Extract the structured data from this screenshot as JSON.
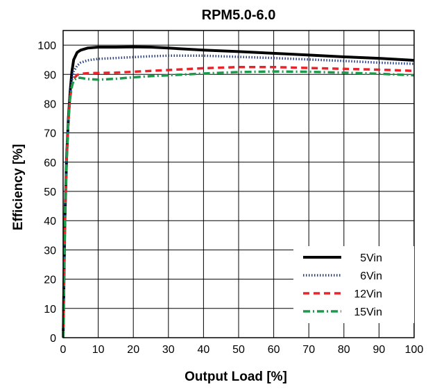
{
  "chart_data": {
    "type": "line",
    "title": "RPM5.0-6.0",
    "xlabel": "Output Load [%]",
    "ylabel": "Efficiency [%]",
    "xlim": [
      0,
      100
    ],
    "ylim": [
      0,
      105
    ],
    "x_ticks": [
      0,
      10,
      20,
      30,
      40,
      50,
      60,
      70,
      80,
      90,
      100
    ],
    "y_ticks": [
      0,
      10,
      20,
      30,
      40,
      50,
      60,
      70,
      80,
      90,
      100
    ],
    "grid": true,
    "legend_position": "lower-right",
    "series": [
      {
        "name": "5Vin",
        "color": "#000000",
        "style": "solid",
        "x": [
          0,
          0.5,
          1,
          1.5,
          2,
          2.5,
          3,
          4,
          5,
          7,
          10,
          15,
          20,
          25,
          30,
          40,
          50,
          60,
          70,
          80,
          90,
          100
        ],
        "y": [
          0,
          40,
          62,
          75,
          84,
          91,
          95,
          97.5,
          98.3,
          99,
          99.3,
          99.3,
          99.4,
          99.3,
          99,
          98.3,
          97.8,
          97.2,
          96.6,
          96,
          95.5,
          94.8
        ]
      },
      {
        "name": "6Vin",
        "color": "#1f3f8f",
        "style": "dotted",
        "x": [
          0,
          0.5,
          1,
          1.5,
          2,
          2.5,
          3,
          4,
          5,
          7,
          10,
          15,
          20,
          25,
          30,
          40,
          50,
          60,
          70,
          80,
          90,
          100
        ],
        "y": [
          0,
          40,
          62,
          75,
          83,
          88,
          91,
          93,
          94,
          94.8,
          95.3,
          95.6,
          95.9,
          96.2,
          96.4,
          96.4,
          96,
          95.6,
          95.1,
          94.6,
          94,
          93.6
        ]
      },
      {
        "name": "12Vin",
        "color": "#e8242a",
        "style": "dashed",
        "x": [
          0,
          0.5,
          1,
          1.5,
          2,
          2.5,
          3,
          4,
          5,
          7,
          10,
          15,
          20,
          25,
          30,
          40,
          50,
          60,
          70,
          80,
          90,
          100
        ],
        "y": [
          0,
          40,
          61,
          74,
          82,
          86,
          88.5,
          89.8,
          90.2,
          90.4,
          90.5,
          90.6,
          90.9,
          91.2,
          91.5,
          92.1,
          92.5,
          92.5,
          92.2,
          91.9,
          91.6,
          91.2
        ]
      },
      {
        "name": "15Vin",
        "color": "#1a9a4a",
        "style": "dashdot",
        "x": [
          0,
          0.5,
          1,
          1.5,
          2,
          2.5,
          3,
          4,
          5,
          7,
          10,
          15,
          20,
          25,
          30,
          40,
          50,
          60,
          70,
          80,
          90,
          100
        ],
        "y": [
          0,
          40,
          61,
          74,
          82,
          86,
          88,
          88.8,
          88.8,
          88.4,
          88.2,
          88.5,
          89,
          89.4,
          89.7,
          90.3,
          90.8,
          91,
          90.9,
          90.6,
          90.2,
          89.7
        ]
      }
    ]
  }
}
